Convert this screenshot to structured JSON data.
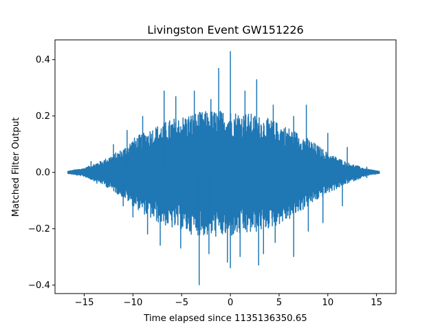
{
  "chart_data": {
    "type": "line",
    "title": "Livingston Event GW151226",
    "xlabel": "Time elapsed since 1135136350.65",
    "ylabel": "Matched Filter Output",
    "xlim": [
      -18.0,
      17.0
    ],
    "ylim": [
      -0.43,
      0.47
    ],
    "xticks": [
      -15,
      -10,
      -5,
      0,
      5,
      10,
      15
    ],
    "yticks": [
      -0.4,
      -0.2,
      0.0,
      0.2,
      0.4
    ],
    "xtick_labels": [
      "−15",
      "−10",
      "−5",
      "0",
      "5",
      "10",
      "15"
    ],
    "ytick_labels": [
      "−0.4",
      "−0.2",
      "0.0",
      "0.2",
      "0.4"
    ],
    "x_range": [
      -16.7,
      15.3
    ],
    "grid": false,
    "color": "#1f77b4",
    "series": [
      {
        "x": [
          -16.7,
          -15.0,
          -13.0,
          -11.0,
          -10.0,
          -8.0,
          -6.0,
          -4.0,
          -2.0,
          0.0,
          2.0,
          4.0,
          6.0,
          8.0,
          10.0,
          12.0,
          14.0,
          15.3
        ],
        "upper": [
          0.004,
          0.015,
          0.045,
          0.085,
          0.12,
          0.16,
          0.19,
          0.21,
          0.22,
          0.22,
          0.21,
          0.19,
          0.16,
          0.12,
          0.07,
          0.035,
          0.012,
          0.004
        ],
        "lower": [
          -0.004,
          -0.015,
          -0.045,
          -0.09,
          -0.12,
          -0.17,
          -0.2,
          -0.22,
          -0.23,
          -0.23,
          -0.22,
          -0.2,
          -0.17,
          -0.12,
          -0.075,
          -0.04,
          -0.012,
          -0.004
        ],
        "spikes": [
          {
            "x": -16.0,
            "y": 0.01
          },
          {
            "x": -14.3,
            "y": 0.04
          },
          {
            "x": -12.0,
            "y": 0.1
          },
          {
            "x": -10.6,
            "y": 0.15
          },
          {
            "x": -9.0,
            "y": 0.2
          },
          {
            "x": -6.8,
            "y": 0.29
          },
          {
            "x": -5.6,
            "y": 0.27
          },
          {
            "x": -3.7,
            "y": 0.29
          },
          {
            "x": -2.0,
            "y": 0.26
          },
          {
            "x": -1.2,
            "y": 0.37
          },
          {
            "x": 0.0,
            "y": 0.43
          },
          {
            "x": 1.5,
            "y": 0.29
          },
          {
            "x": 2.7,
            "y": 0.33
          },
          {
            "x": 4.4,
            "y": 0.24
          },
          {
            "x": 6.5,
            "y": 0.2
          },
          {
            "x": 7.8,
            "y": 0.24
          },
          {
            "x": 10.0,
            "y": 0.14
          },
          {
            "x": 12.0,
            "y": 0.09
          },
          {
            "x": 14.0,
            "y": 0.02
          },
          {
            "x": -15.8,
            "y": -0.01
          },
          {
            "x": -13.7,
            "y": -0.04
          },
          {
            "x": -11.0,
            "y": -0.12
          },
          {
            "x": -10.0,
            "y": -0.16
          },
          {
            "x": -8.5,
            "y": -0.22
          },
          {
            "x": -7.2,
            "y": -0.26
          },
          {
            "x": -5.1,
            "y": -0.27
          },
          {
            "x": -3.2,
            "y": -0.4
          },
          {
            "x": -2.2,
            "y": -0.29
          },
          {
            "x": -0.3,
            "y": -0.32
          },
          {
            "x": 0.0,
            "y": -0.34
          },
          {
            "x": 1.0,
            "y": -0.3
          },
          {
            "x": 2.9,
            "y": -0.33
          },
          {
            "x": 3.4,
            "y": -0.29
          },
          {
            "x": 4.6,
            "y": -0.25
          },
          {
            "x": 6.5,
            "y": -0.3
          },
          {
            "x": 8.0,
            "y": -0.21
          },
          {
            "x": 9.5,
            "y": -0.18
          },
          {
            "x": 11.5,
            "y": -0.12
          },
          {
            "x": 14.0,
            "y": -0.02
          }
        ]
      }
    ]
  }
}
